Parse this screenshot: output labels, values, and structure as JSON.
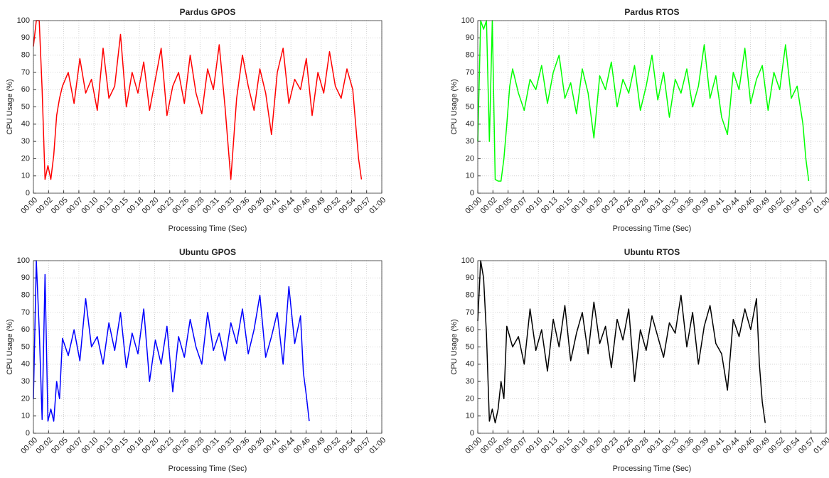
{
  "chart_data": [
    {
      "type": "line",
      "title": "Pardus GPOS",
      "xlabel": "Processing Time (Sec)",
      "ylabel": "CPU Usage (%)",
      "color": "#ff0000",
      "grid": true,
      "x": [
        0,
        0.5,
        1,
        1.5,
        2,
        2.5,
        3,
        3.5,
        4,
        4.5,
        5,
        6,
        7,
        8,
        9,
        10,
        11,
        12,
        13,
        14,
        15,
        16,
        17,
        18,
        19,
        20,
        21,
        22,
        23,
        24,
        25,
        26,
        27,
        28,
        29,
        30,
        31,
        32,
        33,
        34,
        35,
        36,
        37,
        38,
        39,
        40,
        41,
        42,
        43,
        44,
        45,
        46,
        47,
        48,
        49,
        50,
        51,
        52,
        53,
        54,
        55,
        55.5,
        56,
        56.5
      ],
      "values": [
        85,
        100,
        100,
        60,
        8,
        16,
        8,
        22,
        45,
        55,
        62,
        70,
        52,
        78,
        58,
        66,
        48,
        84,
        55,
        62,
        92,
        50,
        70,
        58,
        76,
        48,
        66,
        84,
        45,
        62,
        70,
        52,
        80,
        58,
        46,
        72,
        60,
        86,
        50,
        8,
        55,
        80,
        62,
        48,
        72,
        58,
        34,
        70,
        84,
        52,
        66,
        60,
        78,
        45,
        70,
        58,
        82,
        62,
        55,
        72,
        60,
        40,
        20,
        8
      ],
      "xlim": [
        0,
        60
      ],
      "ylim": [
        0,
        100
      ],
      "yticks": [
        0,
        10,
        20,
        30,
        40,
        50,
        60,
        70,
        80,
        90,
        100
      ],
      "xticks": [
        {
          "value": 0,
          "label": "00:00"
        },
        {
          "value": 2.6087,
          "label": "00:02"
        },
        {
          "value": 5.2174,
          "label": "00:05"
        },
        {
          "value": 7.8261,
          "label": "00:07"
        },
        {
          "value": 10.4348,
          "label": "00:10"
        },
        {
          "value": 13.0435,
          "label": "00:13"
        },
        {
          "value": 15.6522,
          "label": "00:15"
        },
        {
          "value": 18.2609,
          "label": "00:18"
        },
        {
          "value": 20.8696,
          "label": "00:20"
        },
        {
          "value": 23.4783,
          "label": "00:23"
        },
        {
          "value": 26.087,
          "label": "00:26"
        },
        {
          "value": 28.6957,
          "label": "00:28"
        },
        {
          "value": 31.3043,
          "label": "00:31"
        },
        {
          "value": 33.913,
          "label": "00:33"
        },
        {
          "value": 36.5217,
          "label": "00:36"
        },
        {
          "value": 39.1304,
          "label": "00:39"
        },
        {
          "value": 41.7391,
          "label": "00:41"
        },
        {
          "value": 44.3478,
          "label": "00:44"
        },
        {
          "value": 46.9565,
          "label": "00:46"
        },
        {
          "value": 49.5652,
          "label": "00:49"
        },
        {
          "value": 52.1739,
          "label": "00:52"
        },
        {
          "value": 54.7826,
          "label": "00:54"
        },
        {
          "value": 57.3913,
          "label": "00:57"
        },
        {
          "value": 60,
          "label": "01:00"
        }
      ]
    },
    {
      "type": "line",
      "title": "Pardus RTOS",
      "xlabel": "Processing Time (Sec)",
      "ylabel": "CPU Usage (%)",
      "color": "#00ff00",
      "grid": true,
      "x": [
        0,
        0.5,
        1,
        1.5,
        2,
        2.5,
        3,
        3.5,
        4,
        4.5,
        5,
        5.5,
        6,
        7,
        8,
        9,
        10,
        11,
        12,
        13,
        14,
        15,
        16,
        17,
        18,
        19,
        20,
        21,
        22,
        23,
        24,
        25,
        26,
        27,
        28,
        29,
        30,
        31,
        32,
        33,
        34,
        35,
        36,
        37,
        38,
        39,
        40,
        41,
        42,
        43,
        44,
        45,
        46,
        47,
        48,
        49,
        50,
        51,
        52,
        53,
        54,
        55,
        56,
        56.5,
        57
      ],
      "values": [
        30,
        100,
        95,
        100,
        30,
        100,
        8,
        7,
        7,
        20,
        40,
        62,
        72,
        58,
        48,
        66,
        60,
        74,
        52,
        70,
        80,
        55,
        64,
        46,
        72,
        58,
        32,
        68,
        60,
        76,
        50,
        66,
        58,
        74,
        48,
        62,
        80,
        54,
        70,
        44,
        66,
        58,
        72,
        50,
        62,
        86,
        55,
        68,
        44,
        34,
        70,
        60,
        84,
        52,
        66,
        74,
        48,
        70,
        60,
        86,
        55,
        62,
        40,
        20,
        7
      ],
      "xlim": [
        0,
        60
      ],
      "ylim": [
        0,
        100
      ],
      "yticks": [
        0,
        10,
        20,
        30,
        40,
        50,
        60,
        70,
        80,
        90,
        100
      ],
      "xticks": [
        {
          "value": 0,
          "label": "00:00"
        },
        {
          "value": 2.6087,
          "label": "00:02"
        },
        {
          "value": 5.2174,
          "label": "00:05"
        },
        {
          "value": 7.8261,
          "label": "00:07"
        },
        {
          "value": 10.4348,
          "label": "00:10"
        },
        {
          "value": 13.0435,
          "label": "00:13"
        },
        {
          "value": 15.6522,
          "label": "00:15"
        },
        {
          "value": 18.2609,
          "label": "00:18"
        },
        {
          "value": 20.8696,
          "label": "00:20"
        },
        {
          "value": 23.4783,
          "label": "00:23"
        },
        {
          "value": 26.087,
          "label": "00:26"
        },
        {
          "value": 28.6957,
          "label": "00:28"
        },
        {
          "value": 31.3043,
          "label": "00:31"
        },
        {
          "value": 33.913,
          "label": "00:33"
        },
        {
          "value": 36.5217,
          "label": "00:36"
        },
        {
          "value": 39.1304,
          "label": "00:39"
        },
        {
          "value": 41.7391,
          "label": "00:41"
        },
        {
          "value": 44.3478,
          "label": "00:44"
        },
        {
          "value": 46.9565,
          "label": "00:46"
        },
        {
          "value": 49.5652,
          "label": "00:49"
        },
        {
          "value": 52.1739,
          "label": "00:52"
        },
        {
          "value": 54.7826,
          "label": "00:54"
        },
        {
          "value": 57.3913,
          "label": "00:57"
        },
        {
          "value": 60,
          "label": "01:00"
        }
      ]
    },
    {
      "type": "line",
      "title": "Ubuntu GPOS",
      "xlabel": "Processing Time (Sec)",
      "ylabel": "CPU Usage (%)",
      "color": "#0000ff",
      "grid": true,
      "x": [
        0,
        0.5,
        1,
        1.5,
        2,
        2.5,
        3,
        3.5,
        4,
        4.5,
        5,
        6,
        7,
        8,
        9,
        10,
        11,
        12,
        13,
        14,
        15,
        16,
        17,
        18,
        19,
        20,
        21,
        22,
        23,
        24,
        25,
        26,
        27,
        28,
        29,
        30,
        31,
        32,
        33,
        34,
        35,
        36,
        37,
        38,
        39,
        40,
        41,
        42,
        43,
        44,
        45,
        46,
        46.5,
        47,
        47.5
      ],
      "values": [
        20,
        100,
        60,
        8,
        92,
        7,
        14,
        7,
        30,
        20,
        55,
        45,
        60,
        42,
        78,
        50,
        56,
        40,
        64,
        48,
        70,
        38,
        58,
        46,
        72,
        30,
        54,
        40,
        62,
        24,
        56,
        44,
        66,
        50,
        40,
        70,
        48,
        58,
        42,
        64,
        52,
        72,
        46,
        60,
        80,
        44,
        56,
        70,
        40,
        85,
        52,
        68,
        35,
        22,
        7
      ],
      "xlim": [
        0,
        60
      ],
      "ylim": [
        0,
        100
      ],
      "yticks": [
        0,
        10,
        20,
        30,
        40,
        50,
        60,
        70,
        80,
        90,
        100
      ],
      "xticks": [
        {
          "value": 0,
          "label": "00:00"
        },
        {
          "value": 2.6087,
          "label": "00:02"
        },
        {
          "value": 5.2174,
          "label": "00:05"
        },
        {
          "value": 7.8261,
          "label": "00:07"
        },
        {
          "value": 10.4348,
          "label": "00:10"
        },
        {
          "value": 13.0435,
          "label": "00:13"
        },
        {
          "value": 15.6522,
          "label": "00:15"
        },
        {
          "value": 18.2609,
          "label": "00:18"
        },
        {
          "value": 20.8696,
          "label": "00:20"
        },
        {
          "value": 23.4783,
          "label": "00:23"
        },
        {
          "value": 26.087,
          "label": "00:26"
        },
        {
          "value": 28.6957,
          "label": "00:28"
        },
        {
          "value": 31.3043,
          "label": "00:31"
        },
        {
          "value": 33.913,
          "label": "00:33"
        },
        {
          "value": 36.5217,
          "label": "00:36"
        },
        {
          "value": 39.1304,
          "label": "00:39"
        },
        {
          "value": 41.7391,
          "label": "00:41"
        },
        {
          "value": 44.3478,
          "label": "00:44"
        },
        {
          "value": 46.9565,
          "label": "00:46"
        },
        {
          "value": 49.5652,
          "label": "00:49"
        },
        {
          "value": 52.1739,
          "label": "00:52"
        },
        {
          "value": 54.7826,
          "label": "00:54"
        },
        {
          "value": 57.3913,
          "label": "00:57"
        },
        {
          "value": 60,
          "label": "01:00"
        }
      ]
    },
    {
      "type": "line",
      "title": "Ubuntu RTOS",
      "xlabel": "Processing Time (Sec)",
      "ylabel": "CPU Usage (%)",
      "color": "#000000",
      "grid": true,
      "x": [
        0,
        0.5,
        1,
        1.5,
        2,
        2.5,
        3,
        3.5,
        4,
        4.5,
        5,
        6,
        7,
        8,
        9,
        10,
        11,
        12,
        13,
        14,
        15,
        16,
        17,
        18,
        19,
        20,
        21,
        22,
        23,
        24,
        25,
        26,
        27,
        28,
        29,
        30,
        31,
        32,
        33,
        34,
        35,
        36,
        37,
        38,
        39,
        40,
        41,
        42,
        43,
        44,
        45,
        46,
        47,
        48,
        48.5,
        49,
        49.5
      ],
      "values": [
        65,
        100,
        90,
        57,
        7,
        14,
        6,
        14,
        30,
        20,
        62,
        50,
        56,
        40,
        72,
        48,
        60,
        36,
        66,
        50,
        74,
        42,
        58,
        70,
        46,
        76,
        52,
        62,
        38,
        66,
        54,
        72,
        30,
        60,
        48,
        68,
        56,
        44,
        64,
        58,
        80,
        50,
        70,
        40,
        62,
        74,
        52,
        46,
        25,
        66,
        56,
        72,
        60,
        78,
        40,
        18,
        6
      ],
      "xlim": [
        0,
        60
      ],
      "ylim": [
        0,
        100
      ],
      "yticks": [
        0,
        10,
        20,
        30,
        40,
        50,
        60,
        70,
        80,
        90,
        100
      ],
      "xticks": [
        {
          "value": 0,
          "label": "00:00"
        },
        {
          "value": 2.6087,
          "label": "00:02"
        },
        {
          "value": 5.2174,
          "label": "00:05"
        },
        {
          "value": 7.8261,
          "label": "00:07"
        },
        {
          "value": 10.4348,
          "label": "00:10"
        },
        {
          "value": 13.0435,
          "label": "00:13"
        },
        {
          "value": 15.6522,
          "label": "00:15"
        },
        {
          "value": 18.2609,
          "label": "00:18"
        },
        {
          "value": 20.8696,
          "label": "00:20"
        },
        {
          "value": 23.4783,
          "label": "00:23"
        },
        {
          "value": 26.087,
          "label": "00:26"
        },
        {
          "value": 28.6957,
          "label": "00:28"
        },
        {
          "value": 31.3043,
          "label": "00:31"
        },
        {
          "value": 33.913,
          "label": "00:33"
        },
        {
          "value": 36.5217,
          "label": "00:36"
        },
        {
          "value": 39.1304,
          "label": "00:39"
        },
        {
          "value": 41.7391,
          "label": "00:41"
        },
        {
          "value": 44.3478,
          "label": "00:44"
        },
        {
          "value": 46.9565,
          "label": "00:46"
        },
        {
          "value": 49.5652,
          "label": "00:49"
        },
        {
          "value": 52.1739,
          "label": "00:52"
        },
        {
          "value": 54.7826,
          "label": "00:54"
        },
        {
          "value": 57.3913,
          "label": "00:57"
        },
        {
          "value": 60,
          "label": "01:00"
        }
      ]
    }
  ]
}
